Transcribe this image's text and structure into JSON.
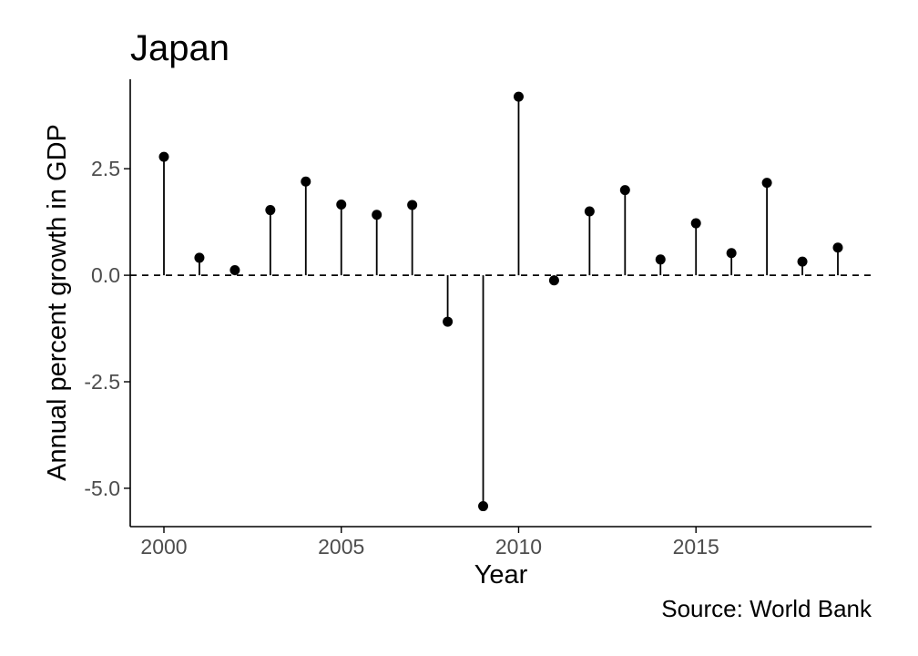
{
  "chart_data": {
    "type": "lollipop",
    "title": "Japan",
    "xlabel": "Year",
    "ylabel": "Annual percent growth in GDP",
    "caption": "Source: World Bank",
    "x": [
      2000,
      2001,
      2002,
      2003,
      2004,
      2005,
      2006,
      2007,
      2008,
      2009,
      2010,
      2011,
      2012,
      2013,
      2014,
      2015,
      2016,
      2017,
      2018,
      2019
    ],
    "values": [
      2.78,
      0.41,
      0.12,
      1.53,
      2.2,
      1.66,
      1.42,
      1.65,
      -1.09,
      -5.42,
      4.19,
      -0.12,
      1.5,
      2.0,
      0.37,
      1.22,
      0.52,
      2.17,
      0.32,
      0.65
    ],
    "xlim": [
      1999.05,
      2019.95
    ],
    "ylim": [
      -5.9,
      4.6
    ],
    "xticks": [
      2000,
      2005,
      2010,
      2015
    ],
    "xtick_labels": [
      "2000",
      "2005",
      "2010",
      "2015"
    ],
    "yticks": [
      -5.0,
      -2.5,
      0.0,
      2.5
    ],
    "ytick_labels": [
      "-5.0",
      "-2.5",
      "0.0",
      "2.5"
    ],
    "reference_line": {
      "y": 0,
      "style": "dashed"
    },
    "grid": false,
    "colors": {
      "points": "#000000",
      "stems": "#000000",
      "axis": "#000000",
      "tick_labels": "#4d4d4d"
    }
  }
}
